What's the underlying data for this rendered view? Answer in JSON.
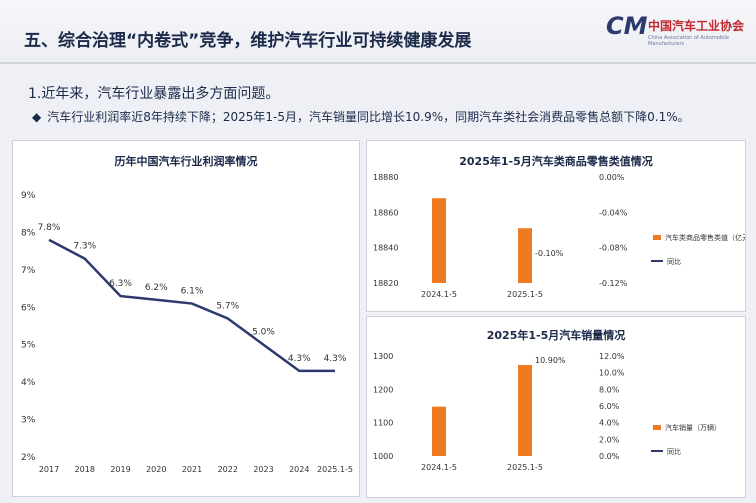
{
  "slide": {
    "title": "五、综合治理“内卷式”竞争，维护汽车行业可持续健康发展",
    "logo": {
      "mark": "CM",
      "name": "中国汽车工业协会",
      "subtitle": "China Association of Automobile Manufacturers"
    },
    "point1": "1.近年来，汽车行业暴露出多方面问题。",
    "bullet_mark": "◆",
    "bullet": "汽车行业利润率近8年持续下降；2025年1-5月，汽车销量同比增长10.9%，同期汽车类社会消费品零售总额下降0.1%。"
  },
  "colors": {
    "line": "#2d3a6e",
    "bar": "#f07a22",
    "title": "#1c2a4a"
  },
  "chart_data": [
    {
      "type": "line",
      "title": "历年中国汽车行业利润率情况",
      "categories": [
        "2017",
        "2018",
        "2019",
        "2020",
        "2021",
        "2022",
        "2023",
        "2024",
        "2025.1-5"
      ],
      "values": [
        7.8,
        7.3,
        6.3,
        6.2,
        6.1,
        5.7,
        5.0,
        4.3,
        4.3
      ],
      "data_labels": [
        "7.8%",
        "7.3%",
        "6.3%",
        "6.2%",
        "6.1%",
        "5.7%",
        "5.0%",
        "4.3%",
        "4.3%"
      ],
      "y_ticks": [
        "2%",
        "3%",
        "4%",
        "5%",
        "6%",
        "7%",
        "8%",
        "9%"
      ],
      "ylim": [
        2,
        9
      ],
      "grid": false
    },
    {
      "type": "bar",
      "title": "2025年1-5月汽车类商品零售类值情况",
      "categories": [
        "2024.1-5",
        "2025.1-5"
      ],
      "values": [
        18868,
        18851
      ],
      "ylim": [
        18820,
        18880
      ],
      "y_ticks": [
        "18820",
        "18840",
        "18860",
        "18880"
      ],
      "y2_ticks": [
        "-0.12%",
        "-0.08%",
        "-0.04%",
        "0.00%"
      ],
      "y2lim": [
        -0.12,
        0
      ],
      "growth_label": "-0.10%",
      "legend": [
        "汽车类商品零售类值（亿元）",
        "同比"
      ],
      "legend_position": "right"
    },
    {
      "type": "bar",
      "title": "2025年1-5月汽车销量情况",
      "categories": [
        "2024.1-5",
        "2025.1-5"
      ],
      "values": [
        1148,
        1273
      ],
      "ylim": [
        1000,
        1300
      ],
      "y_ticks": [
        "1000",
        "1100",
        "1200",
        "1300"
      ],
      "y2_ticks": [
        "0.0%",
        "2.0%",
        "4.0%",
        "6.0%",
        "8.0%",
        "10.0%",
        "12.0%"
      ],
      "y2lim": [
        0,
        12
      ],
      "growth_label": "10.90%",
      "legend": [
        "汽车销量（万辆）",
        "同比"
      ],
      "legend_position": "right"
    }
  ]
}
